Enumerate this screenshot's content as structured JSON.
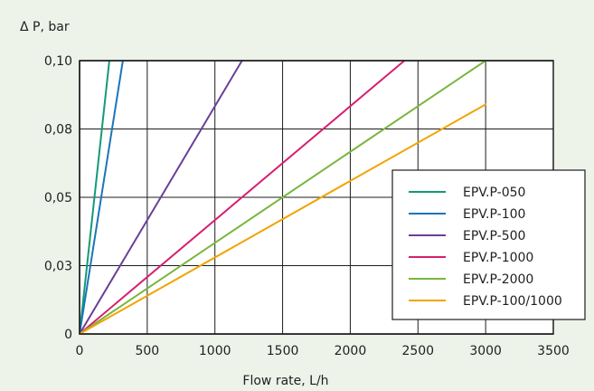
{
  "chart_data": {
    "type": "line",
    "ylabel": "Δ P, bar",
    "xlabel": "Flow rate, L/h",
    "xlim": [
      0,
      3500
    ],
    "ylim": [
      0,
      0.1
    ],
    "x_ticks": [
      0,
      500,
      1000,
      1500,
      2000,
      2500,
      3000,
      3500
    ],
    "y_ticks": [
      {
        "value": 0.0,
        "label": "0"
      },
      {
        "value": 0.025,
        "label": "0,03"
      },
      {
        "value": 0.05,
        "label": "0,05"
      },
      {
        "value": 0.075,
        "label": "0,08"
      },
      {
        "value": 0.1,
        "label": "0,10"
      }
    ],
    "grid": true,
    "legend_position": "bottom-right",
    "series": [
      {
        "name": "EPV.P-050",
        "color": "#159979",
        "points": [
          {
            "x": 0,
            "y": 0
          },
          {
            "x": 220,
            "y": 0.1
          }
        ]
      },
      {
        "name": "EPV.P-100",
        "color": "#1b75b9",
        "points": [
          {
            "x": 0,
            "y": 0
          },
          {
            "x": 320,
            "y": 0.1
          }
        ]
      },
      {
        "name": "EPV.P-500",
        "color": "#6b3f97",
        "points": [
          {
            "x": 0,
            "y": 0
          },
          {
            "x": 1200,
            "y": 0.1
          }
        ]
      },
      {
        "name": "EPV.P-1000",
        "color": "#d61f6f",
        "points": [
          {
            "x": 0,
            "y": 0
          },
          {
            "x": 2400,
            "y": 0.1
          }
        ]
      },
      {
        "name": "EPV.P-2000",
        "color": "#78b63d",
        "points": [
          {
            "x": 0,
            "y": 0
          },
          {
            "x": 3000,
            "y": 0.1
          }
        ]
      },
      {
        "name": "EPV.P-100/1000",
        "color": "#f0a400",
        "points": [
          {
            "x": 0,
            "y": 0
          },
          {
            "x": 3000,
            "y": 0.084
          }
        ]
      }
    ]
  }
}
